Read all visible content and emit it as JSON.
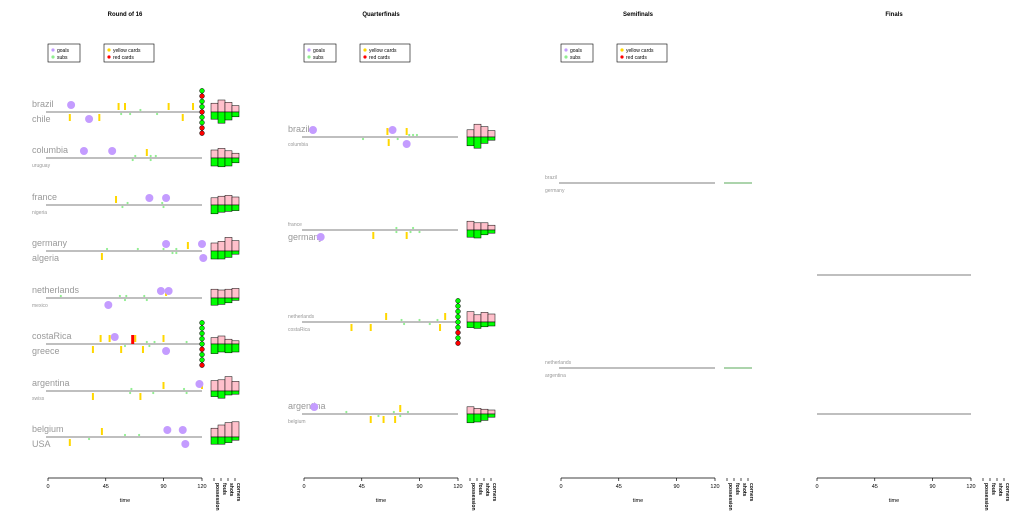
{
  "colors": {
    "goals": "#c49cff",
    "subs": "#90ee90",
    "yellow_cards": "#ffd700",
    "red_cards": "#ff0000",
    "team1_bars": "#ffc0cb",
    "team2_bars": "#00ff00",
    "timeline": "#555555"
  },
  "legend": {
    "goals": "goals",
    "subs": "subs",
    "yellow_cards": "yellow cards",
    "red_cards": "red cards"
  },
  "axis": {
    "xlabel": "time",
    "ticks": [
      "0",
      "45",
      "90",
      "120"
    ],
    "stat_labels": [
      "possession",
      "fouls",
      "shots",
      "corners"
    ]
  },
  "chart_data": {
    "type": "timeline",
    "xlim": [
      0,
      120
    ],
    "panels": [
      {
        "title": "Round of 16",
        "matches": [
          {
            "team1": "brazil",
            "team2": "chile",
            "team1_size": "big",
            "team2_size": "big",
            "t1_goals": [
              18
            ],
            "t2_goals": [
              32
            ],
            "t1_yellow": [
              55,
              60,
              94,
              113
            ],
            "t2_yellow": [
              17,
              40,
              105
            ],
            "t1_red": [],
            "t2_red": [],
            "t1_subs": [
              72
            ],
            "t2_subs": [
              57,
              64,
              85
            ],
            "penalties": [
              "g",
              "r",
              "g",
              "g",
              "r",
              "g",
              "g",
              "r",
              "r"
            ],
            "t1_stats": [
              0.55,
              0.75,
              0.6,
              0.4
            ],
            "t2_stats": [
              0.45,
              0.7,
              0.5,
              0.3
            ]
          },
          {
            "team1": "columbia",
            "team2": "uruguay",
            "team1_size": "big",
            "team2_size": "small",
            "t1_goals": [
              28,
              50
            ],
            "t2_goals": [],
            "t1_yellow": [
              77
            ],
            "t2_yellow": [],
            "t1_red": [],
            "t2_red": [],
            "t1_subs": [
              68,
              80,
              84
            ],
            "t2_subs": [
              66,
              80
            ],
            "penalties": [],
            "t1_stats": [
              0.5,
              0.6,
              0.45,
              0.3
            ],
            "t2_stats": [
              0.5,
              0.55,
              0.5,
              0.3
            ]
          },
          {
            "team1": "france",
            "team2": "nigeria",
            "team1_size": "big",
            "team2_size": "small",
            "t1_goals": [
              79,
              92
            ],
            "t2_goals": [],
            "t1_yellow": [
              53
            ],
            "t2_yellow": [],
            "t1_red": [],
            "t2_red": [],
            "t1_subs": [
              62,
              89
            ],
            "t2_subs": [
              58,
              90
            ],
            "penalties": [],
            "t1_stats": [
              0.45,
              0.55,
              0.6,
              0.5
            ],
            "t2_stats": [
              0.55,
              0.45,
              0.4,
              0.35
            ]
          },
          {
            "team1": "germany",
            "team2": "algeria",
            "team1_size": "big",
            "team2_size": "big",
            "t1_goals": [
              92,
              120
            ],
            "t2_goals": [
              121
            ],
            "t1_yellow": [
              109
            ],
            "t2_yellow": [
              42
            ],
            "t1_red": [],
            "t2_red": [],
            "t1_subs": [
              46,
              70,
              90,
              100
            ],
            "t2_subs": [
              97,
              100
            ],
            "penalties": [],
            "t1_stats": [
              0.5,
              0.6,
              0.85,
              0.65
            ],
            "t2_stats": [
              0.5,
              0.5,
              0.4,
              0.2
            ]
          },
          {
            "team1": "netherlands",
            "team2": "mexico",
            "team1_size": "big",
            "team2_size": "small",
            "t1_goals": [
              88,
              94
            ],
            "t2_goals": [
              47
            ],
            "t1_yellow": [
              92
            ],
            "t2_yellow": [],
            "t1_red": [],
            "t2_red": [],
            "t1_subs": [
              10,
              56,
              61,
              75
            ],
            "t2_subs": [
              60,
              77
            ],
            "penalties": [],
            "t1_stats": [
              0.55,
              0.5,
              0.55,
              0.6
            ],
            "t2_stats": [
              0.45,
              0.4,
              0.3,
              0.15
            ]
          },
          {
            "team1": "costaRica",
            "team2": "greece",
            "team1_size": "big",
            "team2_size": "big",
            "t1_goals": [
              52
            ],
            "t2_goals": [
              92
            ],
            "t1_yellow": [
              41,
              48,
              68,
              90
            ],
            "t2_yellow": [
              35,
              57,
              74
            ],
            "t1_red": [
              66
            ],
            "t2_red": [],
            "t1_subs": [
              77,
              83,
              108
            ],
            "t2_subs": [
              60,
              79
            ],
            "penalties": [
              "g",
              "g",
              "g",
              "g",
              "g",
              "r",
              "g",
              "g",
              "r"
            ],
            "t1_stats": [
              0.4,
              0.5,
              0.3,
              0.2
            ],
            "t2_stats": [
              0.6,
              0.5,
              0.55,
              0.5
            ]
          },
          {
            "team1": "argentina",
            "team2": "swiss",
            "team1_size": "big",
            "team2_size": "small",
            "t1_goals": [
              118
            ],
            "t2_goals": [],
            "t1_yellow": [
              90,
              120
            ],
            "t2_yellow": [
              35,
              72
            ],
            "t1_red": [],
            "t2_red": [],
            "t1_subs": [
              65,
              106
            ],
            "t2_subs": [
              64,
              82,
              108
            ],
            "penalties": [],
            "t1_stats": [
              0.65,
              0.7,
              0.9,
              0.6
            ],
            "t2_stats": [
              0.35,
              0.45,
              0.25,
              0.2
            ]
          },
          {
            "team1": "belgium",
            "team2": "USA",
            "team1_size": "big",
            "team2_size": "big",
            "t1_goals": [
              93,
              105
            ],
            "t2_goals": [
              107
            ],
            "t1_yellow": [
              42
            ],
            "t2_yellow": [
              17
            ],
            "t1_red": [],
            "t2_red": [],
            "t1_subs": [
              60,
              71
            ],
            "t2_subs": [
              32
            ],
            "penalties": [],
            "t1_stats": [
              0.55,
              0.75,
              0.9,
              0.95
            ],
            "t2_stats": [
              0.45,
              0.45,
              0.35,
              0.2
            ]
          }
        ]
      },
      {
        "title": "Quarterfinals",
        "matches": [
          {
            "team1": "brazil",
            "team2": "columbia",
            "team1_size": "big",
            "team2_size": "small",
            "t1_goals": [
              7,
              69
            ],
            "t2_goals": [
              80
            ],
            "t1_yellow": [
              65,
              80
            ],
            "t2_yellow": [
              66
            ],
            "t1_red": [],
            "t2_red": [],
            "t1_subs": [
              82,
              85,
              88
            ],
            "t2_subs": [
              46,
              73
            ],
            "penalties": [],
            "t1_stats": [
              0.45,
              0.8,
              0.65,
              0.4
            ],
            "t2_stats": [
              0.55,
              0.7,
              0.4,
              0.2
            ]
          },
          {
            "team1": "france",
            "team2": "germany",
            "team1_size": "small",
            "team2_size": "big",
            "t1_goals": [],
            "t2_goals": [
              13
            ],
            "t1_yellow": [],
            "t2_yellow": [
              54,
              80
            ],
            "t1_red": [],
            "t2_red": [],
            "t1_subs": [
              72,
              85
            ],
            "t2_subs": [
              72,
              83,
              90
            ],
            "penalties": [],
            "t1_stats": [
              0.55,
              0.45,
              0.45,
              0.3
            ],
            "t2_stats": [
              0.45,
              0.5,
              0.3,
              0.2
            ]
          },
          {
            "team1": "netherlands",
            "team2": "costaRica",
            "team1_size": "small",
            "team2_size": "small",
            "t1_goals": [],
            "t2_goals": [],
            "t1_yellow": [
              64,
              110
            ],
            "t2_yellow": [
              37,
              52,
              106
            ],
            "t1_red": [],
            "t2_red": [],
            "t1_subs": [
              76,
              90,
              104
            ],
            "t2_subs": [
              78,
              98
            ],
            "penalties": [
              "g",
              "g",
              "g",
              "g",
              "g",
              "g",
              "r",
              "g",
              "r"
            ],
            "t1_stats": [
              0.65,
              0.45,
              0.6,
              0.5
            ],
            "t2_stats": [
              0.35,
              0.4,
              0.3,
              0.25
            ]
          },
          {
            "team1": "argentina",
            "team2": "belgium",
            "team1_size": "big",
            "team2_size": "small",
            "t1_goals": [
              8
            ],
            "t2_goals": [],
            "t1_yellow": [
              75
            ],
            "t2_yellow": [
              52,
              62,
              71
            ],
            "t1_red": [],
            "t2_red": [],
            "t1_subs": [
              33,
              70,
              81
            ],
            "t2_subs": [
              58,
              75
            ],
            "penalties": [],
            "t1_stats": [
              0.45,
              0.35,
              0.3,
              0.25
            ],
            "t2_stats": [
              0.55,
              0.5,
              0.4,
              0.2
            ]
          }
        ]
      },
      {
        "title": "Semifinals",
        "matches": [
          {
            "team1": "brazil",
            "team2": "germany",
            "team1_size": "small",
            "team2_size": "small",
            "t1_goals": [],
            "t2_goals": [],
            "t1_yellow": [],
            "t2_yellow": [],
            "t1_red": [],
            "t2_red": [],
            "t1_subs": [],
            "t2_subs": [],
            "penalties": [],
            "t1_stats": [
              0,
              0,
              0,
              0
            ],
            "t2_stats": [
              0,
              0,
              0,
              0
            ]
          },
          {
            "team1": "netherlands",
            "team2": "argentina",
            "team1_size": "small",
            "team2_size": "small",
            "t1_goals": [],
            "t2_goals": [],
            "t1_yellow": [],
            "t2_yellow": [],
            "t1_red": [],
            "t2_red": [],
            "t1_subs": [],
            "t2_subs": [],
            "penalties": [],
            "t1_stats": [
              0,
              0,
              0,
              0
            ],
            "t2_stats": [
              0,
              0,
              0,
              0
            ]
          }
        ]
      },
      {
        "title": "Finals",
        "matches": [
          {
            "team1": "",
            "team2": "",
            "team1_size": "small",
            "team2_size": "small",
            "t1_goals": [],
            "t2_goals": [],
            "t1_yellow": [],
            "t2_yellow": [],
            "t1_red": [],
            "t2_red": [],
            "t1_subs": [],
            "t2_subs": [],
            "penalties": [],
            "t1_stats": null,
            "t2_stats": null
          },
          {
            "team1": "",
            "team2": "",
            "team1_size": "small",
            "team2_size": "small",
            "t1_goals": [],
            "t2_goals": [],
            "t1_yellow": [],
            "t2_yellow": [],
            "t1_red": [],
            "t2_red": [],
            "t1_subs": [],
            "t2_subs": [],
            "penalties": [],
            "t1_stats": null,
            "t2_stats": null
          }
        ]
      }
    ]
  }
}
